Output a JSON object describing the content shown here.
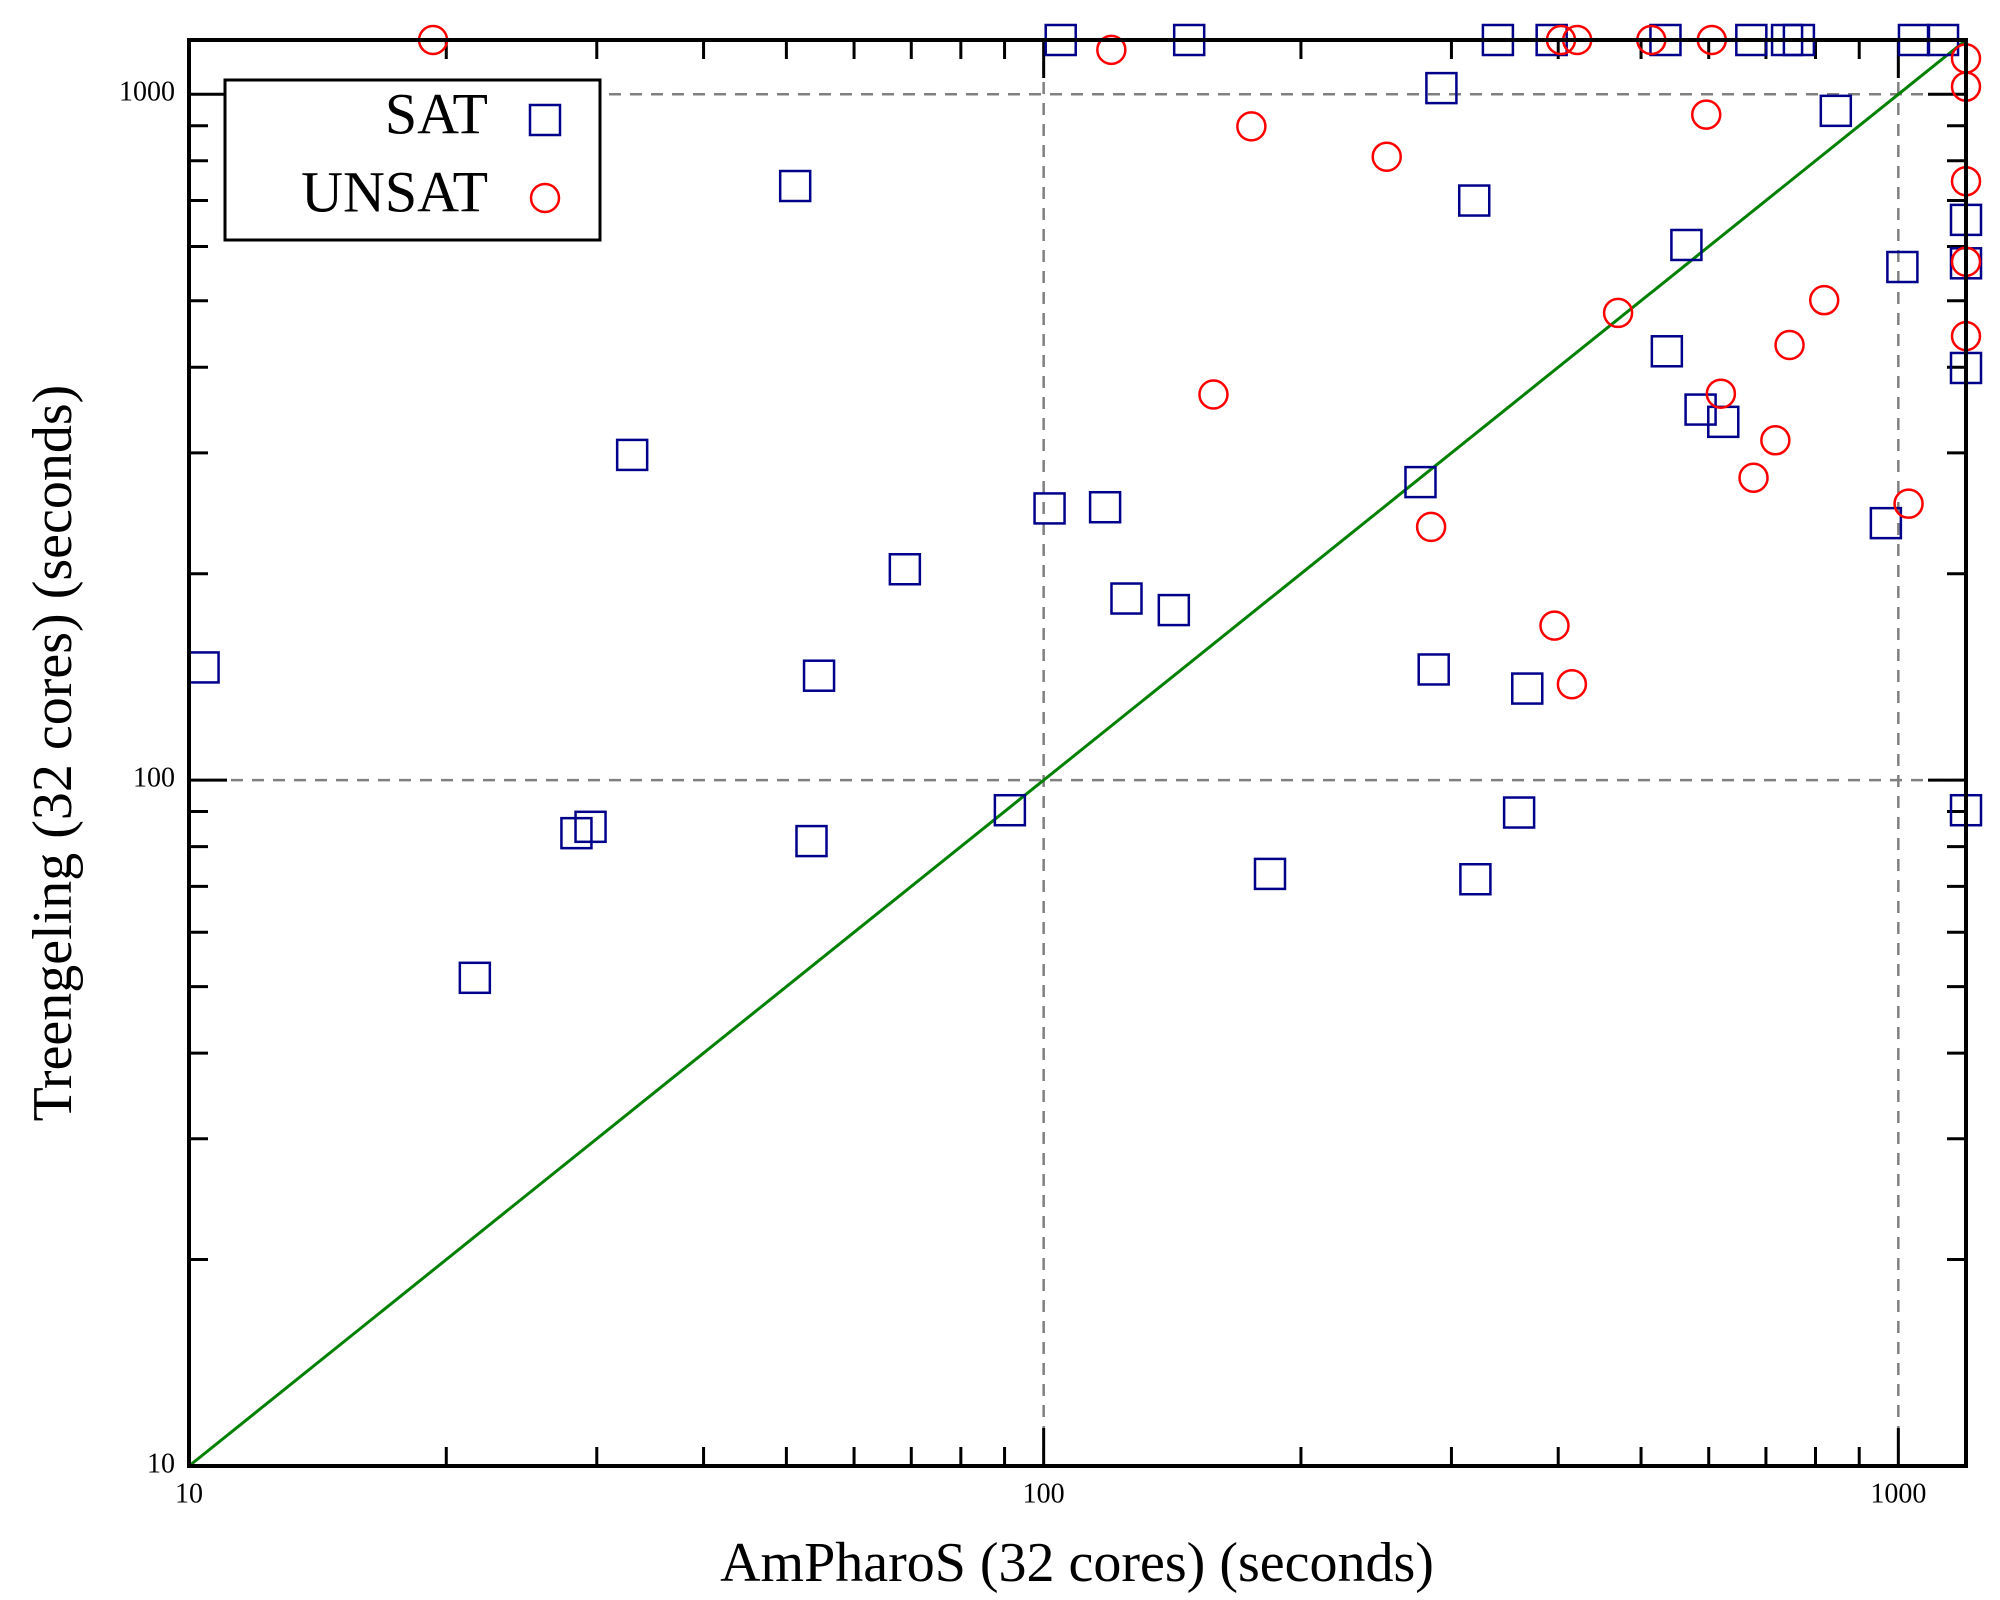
{
  "chart_data": {
    "type": "scatter",
    "x_label": "AmPharoS (32 cores) (seconds)",
    "y_label": "Treengeling (32 cores) (seconds)",
    "xscale": "log",
    "yscale": "log",
    "xlim": [
      10,
      1200
    ],
    "ylim": [
      10,
      1200
    ],
    "xticks": [
      10,
      100,
      1000
    ],
    "yticks": [
      10,
      100,
      1000
    ],
    "xminorticks": [
      20,
      30,
      40,
      50,
      60,
      70,
      80,
      90,
      200,
      300,
      400,
      500,
      600,
      700,
      800,
      900
    ],
    "yminorticks": [
      20,
      30,
      40,
      50,
      60,
      70,
      80,
      90,
      200,
      300,
      400,
      500,
      600,
      700,
      800,
      900
    ],
    "grid": true,
    "legend": "upper left",
    "diagonal_color": "#008000",
    "series": [
      {
        "name": "SAT",
        "color": "#00008b",
        "marker": "square",
        "x": [
          10.4,
          21.6,
          28.4,
          29.5,
          33,
          51.2,
          54.6,
          53.5,
          68.8,
          91.3,
          101.6,
          104.7,
          118,
          125,
          142,
          148,
          184,
          276,
          286,
          292,
          319,
          320,
          340,
          360,
          368,
          393,
          534,
          536,
          565,
          587,
          624,
          673,
          741,
          765,
          845,
          967,
          1011,
          1043,
          1128,
          1200,
          1200,
          1200,
          1200
        ],
        "values": [
          146,
          51.5,
          83.7,
          85.5,
          298,
          735,
          142,
          81.5,
          203,
          90.4,
          249,
          1200,
          250,
          184,
          177,
          1200,
          73,
          272,
          145,
          1021,
          700,
          71.7,
          1200,
          89.7,
          136,
          1200,
          1200,
          422,
          603,
          347,
          333,
          1200,
          1200,
          1200,
          946,
          237,
          560,
          1200,
          1200,
          656,
          567,
          399,
          90.4
        ]
      },
      {
        "name": "UNSAT",
        "color": "#ff0000",
        "marker": "circle",
        "x": [
          19.3,
          120,
          158,
          175,
          252,
          284,
          396,
          403,
          421,
          415,
          470,
          514,
          596,
          605,
          620,
          677,
          718,
          746,
          819,
          1028,
          1200,
          1200,
          1200,
          1200,
          1200
        ],
        "values": [
          1200,
          1161,
          365,
          898,
          811,
          234,
          168,
          1200,
          1200,
          138,
          480,
          1200,
          934,
          1200,
          366,
          276,
          313,
          431,
          501,
          253,
          1128,
          1026,
          747,
          570,
          444
        ]
      }
    ]
  }
}
